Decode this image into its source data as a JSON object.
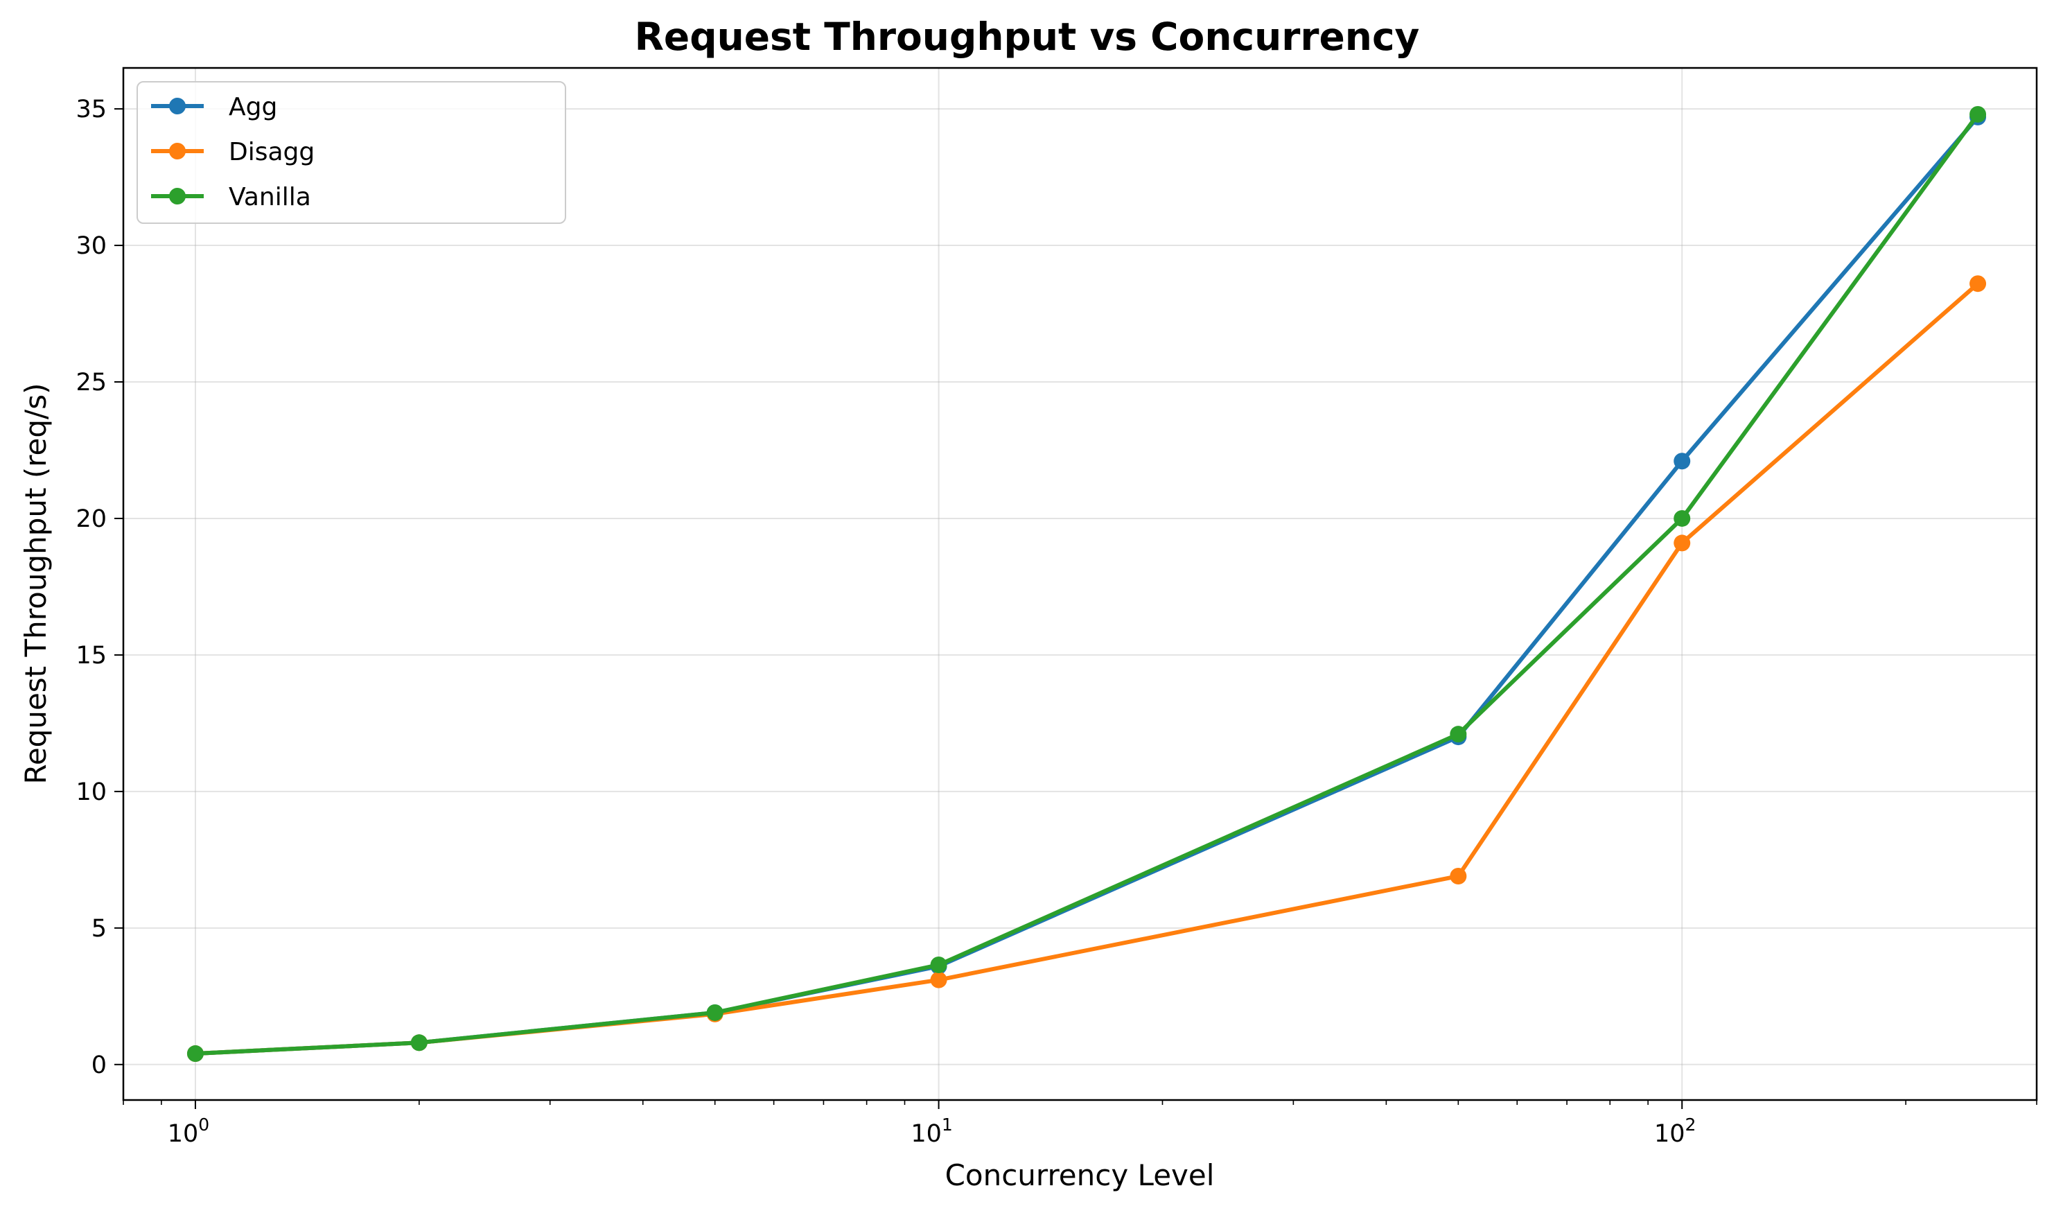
{
  "chart_data": {
    "type": "line",
    "title": "Request Throughput vs Concurrency",
    "xlabel": "Concurrency Level",
    "ylabel": "Request Throughput (req/s)",
    "x_scale": "log",
    "xlim": [
      0.8,
      300
    ],
    "ylim": [
      -1.3,
      36.5
    ],
    "grid": true,
    "legend_position": "top-left",
    "x": [
      1,
      2,
      5,
      10,
      50,
      100,
      250
    ],
    "x_ticks": [
      {
        "value": 1,
        "base": "10",
        "exp": "0"
      },
      {
        "value": 10,
        "base": "10",
        "exp": "1"
      },
      {
        "value": 100,
        "base": "10",
        "exp": "2"
      }
    ],
    "y_ticks": [
      "0",
      "5",
      "10",
      "15",
      "20",
      "25",
      "30",
      "35"
    ],
    "series": [
      {
        "name": "Agg",
        "color": "#1f77b4",
        "values": [
          0.4,
          0.8,
          1.9,
          3.6,
          12.0,
          22.1,
          34.7
        ]
      },
      {
        "name": "Disagg",
        "color": "#ff7f0e",
        "values": [
          0.4,
          0.8,
          1.85,
          3.1,
          6.9,
          19.1,
          28.6
        ]
      },
      {
        "name": "Vanilla",
        "color": "#2ca02c",
        "values": [
          0.4,
          0.8,
          1.9,
          3.65,
          12.1,
          20.0,
          34.8
        ]
      }
    ]
  }
}
